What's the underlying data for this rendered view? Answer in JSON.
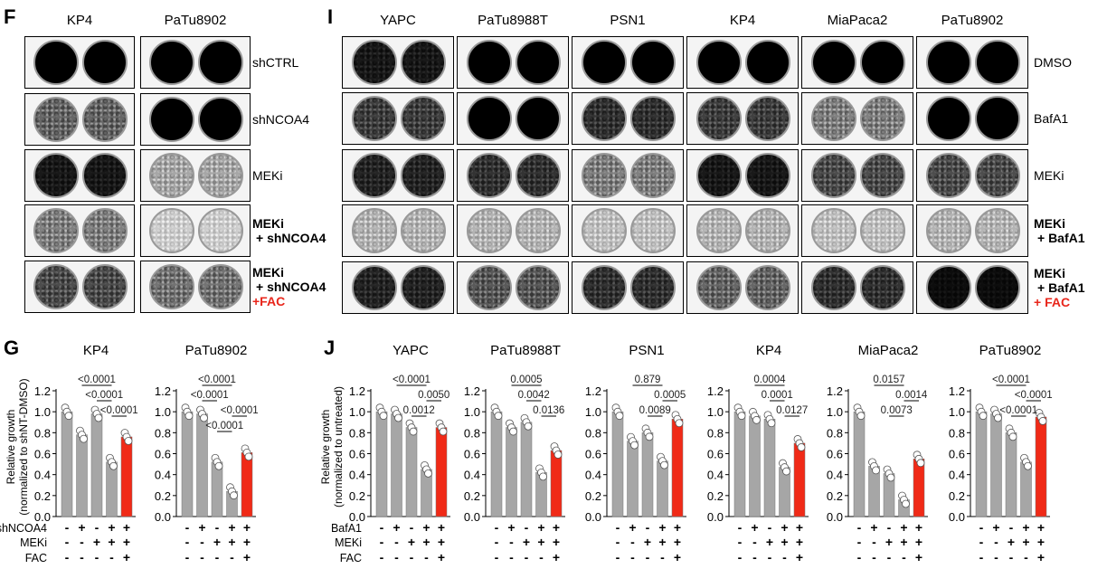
{
  "panels": {
    "F": {
      "letter": "F",
      "columns": [
        "KP4",
        "PaTu8902"
      ],
      "rows": [
        {
          "lines": [
            "shCTRL"
          ],
          "bold": false
        },
        {
          "lines": [
            "shNCOA4"
          ],
          "bold": false
        },
        {
          "lines": [
            "MEKi"
          ],
          "bold": false
        },
        {
          "lines": [
            "MEKi",
            "+ shNCOA4"
          ],
          "bold": true
        },
        {
          "lines": [
            "MEKi",
            "+ shNCOA4"
          ],
          "red": "+FAC",
          "bold": true
        }
      ]
    },
    "I": {
      "letter": "I",
      "columns": [
        "YAPC",
        "PaTu8988T",
        "PSN1",
        "KP4",
        "MiaPaca2",
        "PaTu8902"
      ],
      "rows": [
        {
          "lines": [
            "DMSO"
          ],
          "bold": false
        },
        {
          "lines": [
            "BafA1"
          ],
          "bold": false
        },
        {
          "lines": [
            "MEKi"
          ],
          "bold": false
        },
        {
          "lines": [
            "MEKi",
            "+ BafA1"
          ],
          "bold": true
        },
        {
          "lines": [
            "MEKi",
            "+ BafA1"
          ],
          "red": "+ FAC",
          "bold": true
        }
      ]
    },
    "G": {
      "letter": "G"
    },
    "J": {
      "letter": "J"
    }
  },
  "colors": {
    "bar": "#a6a6a6",
    "highlight": "#f02a17",
    "text_red": "#e8261b"
  },
  "chart_data": [
    {
      "panel": "G",
      "type": "bar",
      "title": "KP4",
      "ylabel": [
        "Relative growth",
        "(normalized to shNT-DMSO)"
      ],
      "ylim": [
        0,
        1.2
      ],
      "yticks": [
        "0.0",
        "0.2",
        "0.4",
        "0.6",
        "0.8",
        "1.0",
        "1.2"
      ],
      "treatments": [
        {
          "name": "shNCOA4",
          "signs": [
            "-",
            "+",
            "-",
            "+",
            "+"
          ]
        },
        {
          "name": "MEKi",
          "signs": [
            "-",
            "-",
            "+",
            "+",
            "+"
          ]
        },
        {
          "name": "FAC",
          "signs": [
            "-",
            "-",
            "-",
            "-",
            "+"
          ]
        }
      ],
      "values": [
        1.0,
        0.78,
        0.98,
        0.52,
        0.76
      ],
      "highlight_index": 4,
      "comparisons": [
        {
          "from": 1,
          "to": 3,
          "p": "<0.0001"
        },
        {
          "from": 2,
          "to": 3,
          "p": "<0.0001"
        },
        {
          "from": 3,
          "to": 4,
          "p": "<0.0001"
        }
      ]
    },
    {
      "panel": "G",
      "type": "bar",
      "title": "PaTu8902",
      "ylim": [
        0,
        1.2
      ],
      "yticks": [
        "0.0",
        "0.2",
        "0.4",
        "0.6",
        "0.8",
        "1.0",
        "1.2"
      ],
      "treatments": [
        {
          "signs": [
            "-",
            "+",
            "-",
            "+",
            "+"
          ]
        },
        {
          "signs": [
            "-",
            "-",
            "+",
            "+",
            "+"
          ]
        },
        {
          "signs": [
            "-",
            "-",
            "-",
            "-",
            "+"
          ]
        }
      ],
      "values": [
        1.0,
        0.98,
        0.52,
        0.24,
        0.61
      ],
      "highlight_index": 4,
      "comparisons": [
        {
          "from": 1,
          "to": 3,
          "p": "<0.0001"
        },
        {
          "from": 1,
          "to": 2,
          "p": "<0.0001"
        },
        {
          "from": 3,
          "to": 4,
          "p": "<0.0001"
        },
        {
          "from": 2,
          "to": 3,
          "p": "<0.0001"
        }
      ]
    },
    {
      "panel": "J",
      "type": "bar",
      "title": "YAPC",
      "ylabel": [
        "Relative growth",
        "(normalized to untreated)"
      ],
      "ylim": [
        0,
        1.2
      ],
      "yticks": [
        "0.0",
        "0.2",
        "0.4",
        "0.6",
        "0.8",
        "1.0",
        "1.2"
      ],
      "treatments": [
        {
          "name": "BafA1",
          "signs": [
            "-",
            "+",
            "-",
            "+",
            "+"
          ]
        },
        {
          "name": "MEKi",
          "signs": [
            "-",
            "-",
            "+",
            "+",
            "+"
          ]
        },
        {
          "name": "FAC",
          "signs": [
            "-",
            "-",
            "-",
            "-",
            "+"
          ]
        }
      ],
      "values": [
        1.0,
        0.98,
        0.85,
        0.45,
        0.85
      ],
      "highlight_index": 4,
      "comparisons": [
        {
          "from": 1,
          "to": 3,
          "p": "<0.0001"
        },
        {
          "from": 3,
          "to": 4,
          "p": "0.0050"
        },
        {
          "from": 2,
          "to": 3,
          "p": "0.0012"
        }
      ]
    },
    {
      "panel": "J",
      "type": "bar",
      "title": "PaTu8988T",
      "ylim": [
        0,
        1.2
      ],
      "yticks": [
        "0.0",
        "0.2",
        "0.4",
        "0.6",
        "0.8",
        "1.0",
        "1.2"
      ],
      "treatments": [
        {
          "signs": [
            "-",
            "+",
            "-",
            "+",
            "+"
          ]
        },
        {
          "signs": [
            "-",
            "-",
            "+",
            "+",
            "+"
          ]
        },
        {
          "signs": [
            "-",
            "-",
            "-",
            "-",
            "+"
          ]
        }
      ],
      "values": [
        1.0,
        0.85,
        0.9,
        0.42,
        0.63
      ],
      "highlight_index": 4,
      "comparisons": [
        {
          "from": 1,
          "to": 3,
          "p": "0.0005"
        },
        {
          "from": 2,
          "to": 3,
          "p": "0.0042"
        },
        {
          "from": 3,
          "to": 4,
          "p": "0.0136"
        }
      ]
    },
    {
      "panel": "J",
      "type": "bar",
      "title": "PSN1",
      "ylim": [
        0,
        1.2
      ],
      "yticks": [
        "0.0",
        "0.2",
        "0.4",
        "0.6",
        "0.8",
        "1.0",
        "1.2"
      ],
      "treatments": [
        {
          "signs": [
            "-",
            "+",
            "-",
            "+",
            "+"
          ]
        },
        {
          "signs": [
            "-",
            "-",
            "+",
            "+",
            "+"
          ]
        },
        {
          "signs": [
            "-",
            "-",
            "-",
            "-",
            "+"
          ]
        }
      ],
      "values": [
        1.0,
        0.72,
        0.8,
        0.53,
        0.93
      ],
      "highlight_index": 4,
      "comparisons": [
        {
          "from": 1,
          "to": 3,
          "p": "0.879"
        },
        {
          "from": 3,
          "to": 4,
          "p": "0.0005"
        },
        {
          "from": 2,
          "to": 3,
          "p": "0.0089"
        }
      ]
    },
    {
      "panel": "J",
      "type": "bar",
      "title": "KP4",
      "ylim": [
        0,
        1.2
      ],
      "yticks": [
        "0.0",
        "0.2",
        "0.4",
        "0.6",
        "0.8",
        "1.0",
        "1.2"
      ],
      "treatments": [
        {
          "signs": [
            "-",
            "+",
            "-",
            "+",
            "+"
          ]
        },
        {
          "signs": [
            "-",
            "-",
            "+",
            "+",
            "+"
          ]
        },
        {
          "signs": [
            "-",
            "-",
            "-",
            "-",
            "+"
          ]
        }
      ],
      "values": [
        1.0,
        0.96,
        0.93,
        0.47,
        0.7
      ],
      "highlight_index": 4,
      "comparisons": [
        {
          "from": 1,
          "to": 3,
          "p": "0.0004"
        },
        {
          "from": 2,
          "to": 3,
          "p": "0.0001"
        },
        {
          "from": 3,
          "to": 4,
          "p": "0.0127"
        }
      ]
    },
    {
      "panel": "J",
      "type": "bar",
      "title": "MiaPaca2",
      "ylim": [
        0,
        1.2
      ],
      "yticks": [
        "0.0",
        "0.2",
        "0.4",
        "0.6",
        "0.8",
        "1.0",
        "1.2"
      ],
      "treatments": [
        {
          "signs": [
            "-",
            "+",
            "-",
            "+",
            "+"
          ]
        },
        {
          "signs": [
            "-",
            "-",
            "+",
            "+",
            "+"
          ]
        },
        {
          "signs": [
            "-",
            "-",
            "-",
            "-",
            "+"
          ]
        }
      ],
      "values": [
        1.0,
        0.48,
        0.41,
        0.16,
        0.55
      ],
      "highlight_index": 4,
      "comparisons": [
        {
          "from": 1,
          "to": 3,
          "p": "0.0157"
        },
        {
          "from": 3,
          "to": 4,
          "p": "0.0014"
        },
        {
          "from": 2,
          "to": 3,
          "p": "0.0073"
        }
      ]
    },
    {
      "panel": "J",
      "type": "bar",
      "title": "PaTu8902",
      "ylim": [
        0,
        1.2
      ],
      "yticks": [
        "0.0",
        "0.2",
        "0.4",
        "0.6",
        "0.8",
        "1.0",
        "1.2"
      ],
      "treatments": [
        {
          "signs": [
            "-",
            "+",
            "-",
            "+",
            "+"
          ]
        },
        {
          "signs": [
            "-",
            "-",
            "+",
            "+",
            "+"
          ]
        },
        {
          "signs": [
            "-",
            "-",
            "-",
            "-",
            "+"
          ]
        }
      ],
      "values": [
        1.0,
        0.98,
        0.8,
        0.52,
        0.95
      ],
      "highlight_index": 4,
      "comparisons": [
        {
          "from": 1,
          "to": 3,
          "p": "<0.0001"
        },
        {
          "from": 3,
          "to": 4,
          "p": "<0.0001"
        },
        {
          "from": 2,
          "to": 3,
          "p": "<0.0001"
        }
      ]
    }
  ]
}
